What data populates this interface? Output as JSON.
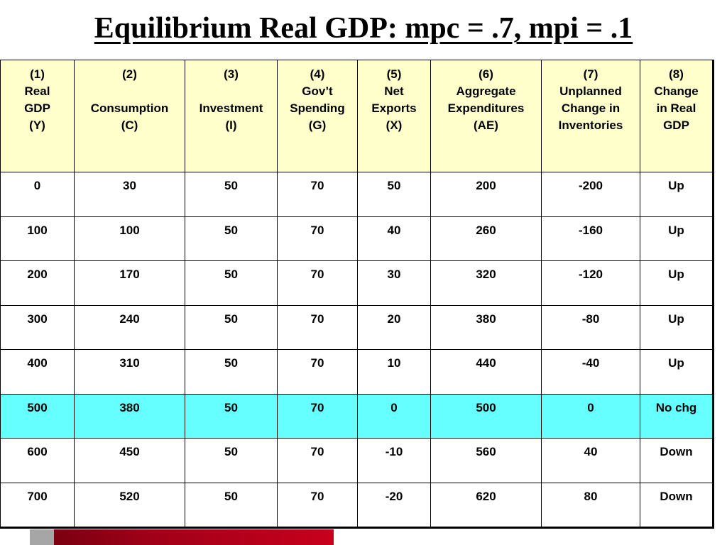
{
  "title": "Equilibrium Real GDP: mpc = .7, mpi = .1",
  "colors": {
    "header_background": "#ffffcc",
    "highlight_row": "#66ffff",
    "footer_gray": "#a6a6a6",
    "footer_red": "#a00018"
  },
  "headers": [
    {
      "lines": [
        "(1)",
        "Real",
        "GDP",
        "(Y)"
      ]
    },
    {
      "lines": [
        "(2)",
        "",
        "Consumption",
        "(C)"
      ]
    },
    {
      "lines": [
        "(3)",
        "",
        "Investment",
        "(I)"
      ]
    },
    {
      "lines": [
        "(4)",
        "Gov’t",
        "Spending",
        "(G)"
      ]
    },
    {
      "lines": [
        "(5)",
        "Net",
        "Exports",
        "(X)"
      ]
    },
    {
      "lines": [
        "(6)",
        "Aggregate",
        "Expenditures",
        "(AE)"
      ]
    },
    {
      "lines": [
        "(7)",
        "Unplanned",
        "Change in",
        "Inventories"
      ]
    },
    {
      "lines": [
        "(8)",
        "Change",
        "in Real",
        "GDP"
      ]
    }
  ],
  "rows": [
    [
      "0",
      "30",
      "50",
      "70",
      "50",
      "200",
      "-200",
      "Up"
    ],
    [
      "100",
      "100",
      "50",
      "70",
      "40",
      "260",
      "-160",
      "Up"
    ],
    [
      "200",
      "170",
      "50",
      "70",
      "30",
      "320",
      "-120",
      "Up"
    ],
    [
      "300",
      "240",
      "50",
      "70",
      "20",
      "380",
      "-80",
      "Up"
    ],
    [
      "400",
      "310",
      "50",
      "70",
      "10",
      "440",
      "-40",
      "Up"
    ],
    [
      "500",
      "380",
      "50",
      "70",
      "0",
      "500",
      "0",
      "No chg"
    ],
    [
      "600",
      "450",
      "50",
      "70",
      "-10",
      "560",
      "40",
      "Down"
    ],
    [
      "700",
      "520",
      "50",
      "70",
      "-20",
      "620",
      "80",
      "Down"
    ]
  ],
  "highlighted_row_index": 5
}
